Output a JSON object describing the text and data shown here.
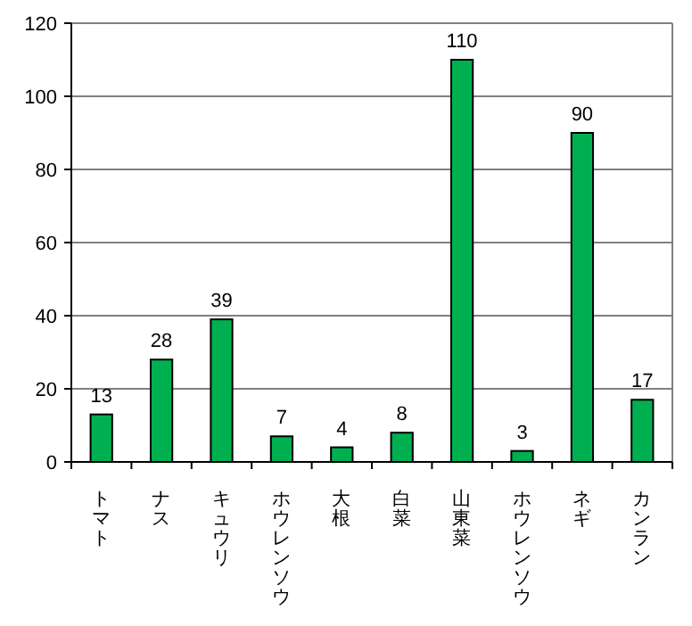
{
  "chart_data": {
    "type": "bar",
    "categories": [
      "トマト",
      "ナス",
      "キュウリ",
      "ホウレンソウ",
      "大根",
      "白菜",
      "山東菜",
      "ホウレンソウ",
      "ネギ",
      "カンラン"
    ],
    "values": [
      13,
      28,
      39,
      7,
      4,
      8,
      110,
      3,
      90,
      17
    ],
    "color": "#00b050",
    "ylim": [
      0,
      120
    ],
    "yticks": [
      0,
      20,
      40,
      60,
      80,
      100,
      120
    ],
    "grid": "y",
    "data_labels": true
  }
}
